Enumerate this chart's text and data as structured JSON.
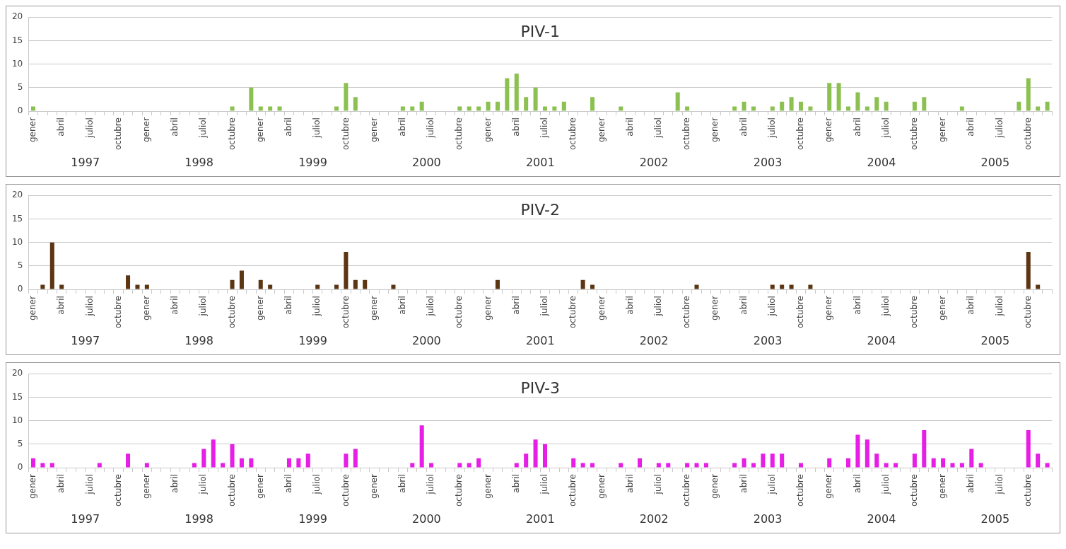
{
  "chart_data": [
    {
      "type": "bar",
      "title": "PIV-1",
      "color": "#8cc152",
      "ylim": [
        0,
        20
      ],
      "yticks": [
        0,
        5,
        10,
        15,
        20
      ],
      "grid": "y",
      "categories": [
        "gener",
        null,
        null,
        "abril",
        null,
        null,
        "juliol",
        null,
        null,
        "octubre",
        null,
        null,
        "gener",
        null,
        null,
        "abril",
        null,
        null,
        "juliol",
        null,
        null,
        "octubre",
        null,
        null,
        "gener",
        null,
        null,
        "abril",
        null,
        null,
        "juliol",
        null,
        null,
        "octubre",
        null,
        null,
        "gener",
        null,
        null,
        "abril",
        null,
        null,
        "juliol",
        null,
        null,
        "octubre",
        null,
        null,
        "gener",
        null,
        null,
        "abril",
        null,
        null,
        "juliol",
        null,
        null,
        "octubre",
        null,
        null,
        "gener",
        null,
        null,
        "abril",
        null,
        null,
        "juliol",
        null,
        null,
        "octubre",
        null,
        null,
        "gener",
        null,
        null,
        "abril",
        null,
        null,
        "juliol",
        null,
        null,
        "octubre",
        null,
        null,
        "gener",
        null,
        null,
        "abril",
        null,
        null,
        "juliol",
        null,
        null,
        "octubre",
        null,
        null,
        "gener",
        null,
        null,
        "abril",
        null,
        null,
        "juliol",
        null,
        null,
        "octubre",
        null,
        null
      ],
      "values": [
        1,
        0,
        0,
        0,
        0,
        0,
        0,
        0,
        0,
        0,
        0,
        0,
        0,
        0,
        0,
        0,
        0,
        0,
        0,
        0,
        0,
        1,
        0,
        5,
        1,
        1,
        1,
        0,
        0,
        0,
        0,
        0,
        1,
        6,
        3,
        0,
        0,
        0,
        0,
        1,
        1,
        2,
        0,
        0,
        0,
        1,
        1,
        1,
        2,
        2,
        7,
        8,
        3,
        5,
        1,
        1,
        2,
        0,
        0,
        3,
        0,
        0,
        1,
        0,
        0,
        0,
        0,
        0,
        4,
        1,
        0,
        0,
        0,
        0,
        1,
        2,
        1,
        0,
        1,
        2,
        3,
        2,
        1,
        0,
        6,
        6,
        1,
        4,
        1,
        3,
        2,
        0,
        0,
        2,
        3,
        0,
        0,
        0,
        1,
        0,
        0,
        0,
        0,
        0,
        2,
        7,
        1,
        2
      ],
      "annotations": [
        "1997",
        "1998",
        "1999",
        "2000",
        "2001",
        "2002",
        "2003",
        "2004",
        "2005"
      ]
    },
    {
      "type": "bar",
      "title": "PIV-2",
      "color": "#5c3512",
      "ylim": [
        0,
        20
      ],
      "yticks": [
        0,
        5,
        10,
        15,
        20
      ],
      "grid": "y",
      "categories": [
        "gener",
        null,
        null,
        "abril",
        null,
        null,
        "juliol",
        null,
        null,
        "octubre",
        null,
        null,
        "gener",
        null,
        null,
        "abril",
        null,
        null,
        "juliol",
        null,
        null,
        "octubre",
        null,
        null,
        "gener",
        null,
        null,
        "abril",
        null,
        null,
        "juliol",
        null,
        null,
        "octubre",
        null,
        null,
        "gener",
        null,
        null,
        "abril",
        null,
        null,
        "juliol",
        null,
        null,
        "octubre",
        null,
        null,
        "gener",
        null,
        null,
        "abril",
        null,
        null,
        "juliol",
        null,
        null,
        "octubre",
        null,
        null,
        "gener",
        null,
        null,
        "abril",
        null,
        null,
        "juliol",
        null,
        null,
        "octubre",
        null,
        null,
        "gener",
        null,
        null,
        "abril",
        null,
        null,
        "juliol",
        null,
        null,
        "octubre",
        null,
        null,
        "gener",
        null,
        null,
        "abril",
        null,
        null,
        "juliol",
        null,
        null,
        "octubre",
        null,
        null,
        "gener",
        null,
        null,
        "abril",
        null,
        null,
        "juliol",
        null,
        null,
        "octubre",
        null,
        null
      ],
      "values": [
        0,
        1,
        10,
        1,
        0,
        0,
        0,
        0,
        0,
        0,
        3,
        1,
        1,
        0,
        0,
        0,
        0,
        0,
        0,
        0,
        0,
        2,
        4,
        0,
        2,
        1,
        0,
        0,
        0,
        0,
        1,
        0,
        1,
        8,
        2,
        2,
        0,
        0,
        1,
        0,
        0,
        0,
        0,
        0,
        0,
        0,
        0,
        0,
        0,
        2,
        0,
        0,
        0,
        0,
        0,
        0,
        0,
        0,
        2,
        1,
        0,
        0,
        0,
        0,
        0,
        0,
        0,
        0,
        0,
        0,
        1,
        0,
        0,
        0,
        0,
        0,
        0,
        0,
        1,
        1,
        1,
        0,
        1,
        0,
        0,
        0,
        0,
        0,
        0,
        0,
        0,
        0,
        0,
        0,
        0,
        0,
        0,
        0,
        0,
        0,
        0,
        0,
        0,
        0,
        0,
        8,
        1,
        0
      ],
      "annotations": [
        "1997",
        "1998",
        "1999",
        "2000",
        "2001",
        "2002",
        "2003",
        "2004",
        "2005"
      ]
    },
    {
      "type": "bar",
      "title": "PIV-3",
      "color": "#e61ee6",
      "ylim": [
        0,
        20
      ],
      "yticks": [
        0,
        5,
        10,
        15,
        20
      ],
      "grid": "y",
      "categories": [
        "gener",
        null,
        null,
        "abril",
        null,
        null,
        "juliol",
        null,
        null,
        "octubre",
        null,
        null,
        "gener",
        null,
        null,
        "abril",
        null,
        null,
        "juliol",
        null,
        null,
        "octubre",
        null,
        null,
        "gener",
        null,
        null,
        "abril",
        null,
        null,
        "juliol",
        null,
        null,
        "octubre",
        null,
        null,
        "gener",
        null,
        null,
        "abril",
        null,
        null,
        "juliol",
        null,
        null,
        "octubre",
        null,
        null,
        "gener",
        null,
        null,
        "abril",
        null,
        null,
        "juliol",
        null,
        null,
        "octubre",
        null,
        null,
        "gener",
        null,
        null,
        "abril",
        null,
        null,
        "juliol",
        null,
        null,
        "octubre",
        null,
        null,
        "gener",
        null,
        null,
        "abril",
        null,
        null,
        "juliol",
        null,
        null,
        "octubre",
        null,
        null,
        "gener",
        null,
        null,
        "abril",
        null,
        null,
        "juliol",
        null,
        null,
        "octubre",
        null,
        null,
        "gener",
        null,
        null,
        "abril",
        null,
        null,
        "juliol",
        null,
        null,
        "octubre",
        null,
        null
      ],
      "values": [
        2,
        1,
        1,
        0,
        0,
        0,
        0,
        1,
        0,
        0,
        3,
        0,
        1,
        0,
        0,
        0,
        0,
        1,
        4,
        6,
        1,
        5,
        2,
        2,
        0,
        0,
        0,
        2,
        2,
        3,
        0,
        0,
        0,
        3,
        4,
        0,
        0,
        0,
        0,
        0,
        1,
        9,
        1,
        0,
        0,
        1,
        1,
        2,
        0,
        0,
        0,
        1,
        3,
        6,
        5,
        0,
        0,
        2,
        1,
        1,
        0,
        0,
        1,
        0,
        2,
        0,
        1,
        1,
        0,
        1,
        1,
        1,
        0,
        0,
        1,
        2,
        1,
        3,
        3,
        3,
        0,
        1,
        0,
        0,
        2,
        0,
        2,
        7,
        6,
        3,
        1,
        1,
        0,
        3,
        8,
        2,
        2,
        1,
        1,
        4,
        1,
        0,
        0,
        0,
        0,
        8,
        3,
        1
      ],
      "annotations": [
        "1997",
        "1998",
        "1999",
        "2000",
        "2001",
        "2002",
        "2003",
        "2004",
        "2005"
      ]
    }
  ]
}
